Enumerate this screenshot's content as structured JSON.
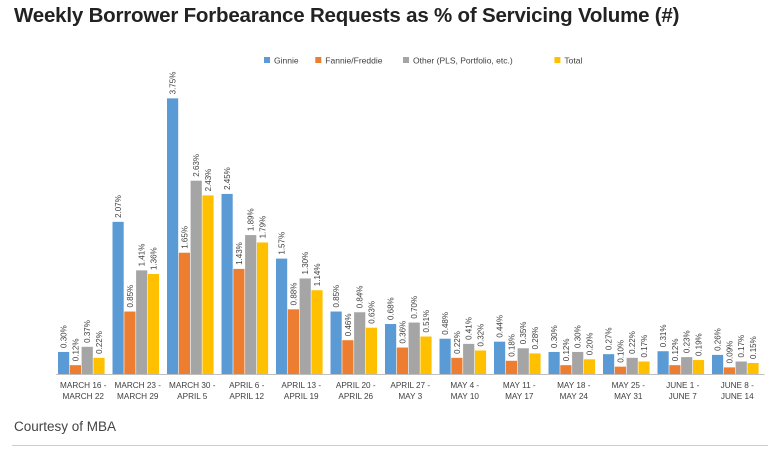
{
  "page": {
    "title": "Weekly Borrower Forbearance Requests as % of Servicing Volume (#)",
    "credit": "Courtesy of MBA"
  },
  "chart_data": {
    "type": "bar",
    "title": "Weekly Borrower Forbearance Requests as % of Servicing Volume (#)",
    "xlabel": "",
    "ylabel": "",
    "ylim": [
      0,
      4.0
    ],
    "grid": false,
    "legend": "top-center",
    "categories": [
      [
        "MARCH 16 -",
        "MARCH 22"
      ],
      [
        "MARCH 23 -",
        "MARCH 29"
      ],
      [
        "MARCH 30 -",
        "APRIL 5"
      ],
      [
        "APRIL 6 -",
        "APRIL 12"
      ],
      [
        "APRIL 13 -",
        "APRIL 19"
      ],
      [
        "APRIL 20 -",
        "APRIL 26"
      ],
      [
        "APRIL 27 -",
        "MAY 3"
      ],
      [
        "MAY 4 -",
        "MAY 10"
      ],
      [
        "MAY 11 -",
        "MAY 17"
      ],
      [
        "MAY 18 -",
        "MAY 24"
      ],
      [
        "MAY 25 -",
        "MAY 31"
      ],
      [
        "JUNE 1 -",
        "JUNE 7"
      ],
      [
        "JUNE 8 -",
        "JUNE 14"
      ]
    ],
    "series": [
      {
        "name": "Ginnie",
        "color": "#5b9bd5",
        "values": [
          0.3,
          2.07,
          3.75,
          2.45,
          1.57,
          0.85,
          0.68,
          0.48,
          0.44,
          0.3,
          0.27,
          0.31,
          0.26
        ],
        "labels": [
          "0.30%",
          "2.07%",
          "3.75%",
          "2.45%",
          "1.57%",
          "0.85%",
          "0.68%",
          "0.48%",
          "0.44%",
          "0.30%",
          "0.27%",
          "0.31%",
          "0.26%"
        ]
      },
      {
        "name": "Fannie/Freddie",
        "color": "#ed7d31",
        "values": [
          0.12,
          0.85,
          1.65,
          1.43,
          0.88,
          0.46,
          0.36,
          0.22,
          0.18,
          0.12,
          0.1,
          0.12,
          0.09
        ],
        "labels": [
          "0.12%",
          "0.85%",
          "1.65%",
          "1.43%",
          "0.88%",
          "0.46%",
          "0.36%",
          "0.22%",
          "0.18%",
          "0.12%",
          "0.10%",
          "0.12%",
          "0.09%"
        ]
      },
      {
        "name": "Other (PLS, Portfolio, etc.)",
        "color": "#a5a5a5",
        "values": [
          0.37,
          1.41,
          2.63,
          1.89,
          1.3,
          0.84,
          0.7,
          0.41,
          0.35,
          0.3,
          0.22,
          0.23,
          0.17
        ],
        "labels": [
          "0.37%",
          "1.41%",
          "2.63%",
          "1.89%",
          "1.30%",
          "0.84%",
          "0.70%",
          "0.41%",
          "0.35%",
          "0.30%",
          "0.22%",
          "0.23%",
          "0.17%"
        ]
      },
      {
        "name": "Total",
        "color": "#ffc000",
        "values": [
          0.22,
          1.36,
          2.43,
          1.79,
          1.14,
          0.63,
          0.51,
          0.32,
          0.28,
          0.2,
          0.17,
          0.19,
          0.15
        ],
        "labels": [
          "0.22%",
          "1.36%",
          "2.43%",
          "1.79%",
          "1.14%",
          "0.63%",
          "0.51%",
          "0.32%",
          "0.28%",
          "0.20%",
          "0.17%",
          "0.19%",
          "0.15%"
        ]
      }
    ]
  }
}
